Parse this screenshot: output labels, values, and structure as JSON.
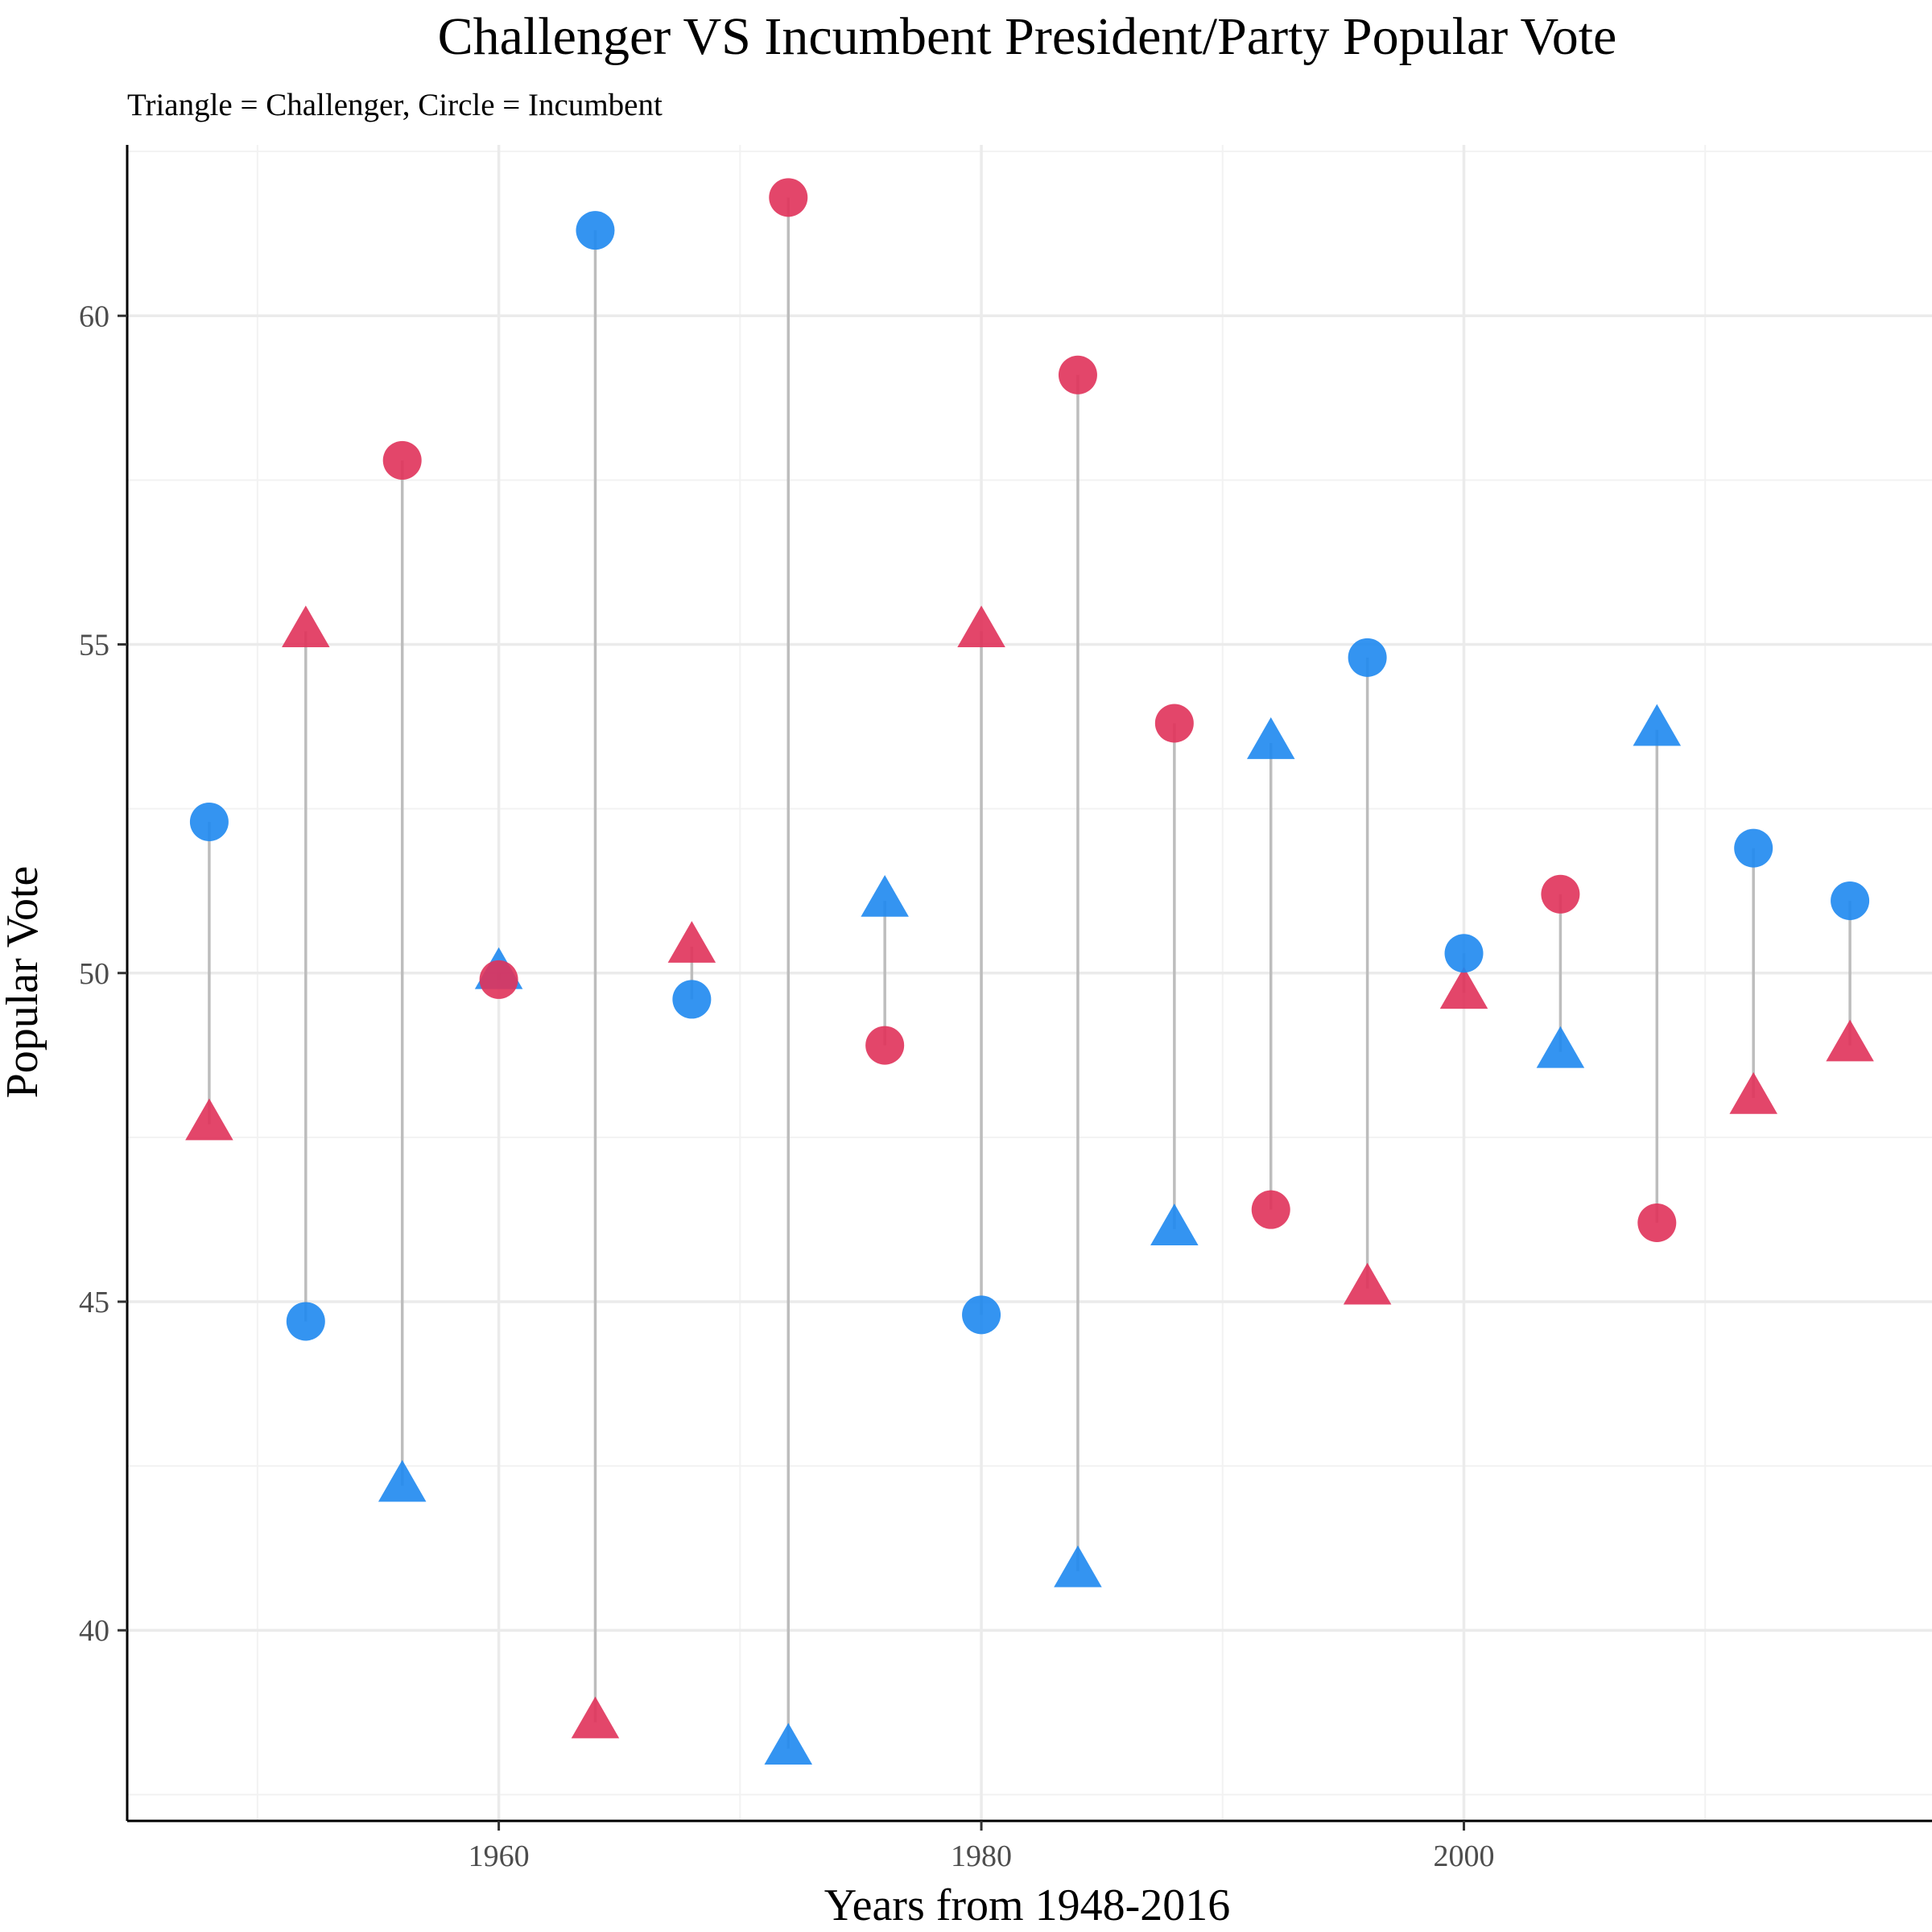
{
  "chart_data": {
    "type": "scatter",
    "title": "Challenger VS Incumbent President/Party Popular Vote",
    "subtitle": "Triangle = Challenger, Circle = Incumbent",
    "xlabel": "Years from 1948-2016",
    "ylabel": "Popular Vote",
    "xlim": [
      1944.6,
      2019.4
    ],
    "ylim": [
      37.1,
      62.6
    ],
    "x_ticks": [
      1960,
      1980,
      2000
    ],
    "y_ticks": [
      40,
      45,
      50,
      55,
      60
    ],
    "grid": true,
    "colors": {
      "blue": "#1E88F0",
      "red": "#E0325A",
      "segment": "#BDBDBD"
    },
    "points": [
      {
        "year": 1948,
        "incumbent": 52.3,
        "incumbent_color": "blue",
        "challenger": 47.7,
        "challenger_color": "red"
      },
      {
        "year": 1952,
        "incumbent": 44.7,
        "incumbent_color": "blue",
        "challenger": 55.2,
        "challenger_color": "red"
      },
      {
        "year": 1956,
        "incumbent": 57.8,
        "incumbent_color": "red",
        "challenger": 42.2,
        "challenger_color": "blue"
      },
      {
        "year": 1960,
        "incumbent": 49.9,
        "incumbent_color": "red",
        "challenger": 50.0,
        "challenger_color": "blue"
      },
      {
        "year": 1964,
        "incumbent": 61.3,
        "incumbent_color": "blue",
        "challenger": 38.6,
        "challenger_color": "red"
      },
      {
        "year": 1968,
        "incumbent": 49.6,
        "incumbent_color": "blue",
        "challenger": 50.4,
        "challenger_color": "red"
      },
      {
        "year": 1972,
        "incumbent": 61.8,
        "incumbent_color": "red",
        "challenger": 38.2,
        "challenger_color": "blue"
      },
      {
        "year": 1976,
        "incumbent": 48.9,
        "incumbent_color": "red",
        "challenger": 51.1,
        "challenger_color": "blue"
      },
      {
        "year": 1980,
        "incumbent": 44.8,
        "incumbent_color": "blue",
        "challenger": 55.2,
        "challenger_color": "red"
      },
      {
        "year": 1984,
        "incumbent": 59.1,
        "incumbent_color": "red",
        "challenger": 40.9,
        "challenger_color": "blue"
      },
      {
        "year": 1988,
        "incumbent": 53.8,
        "incumbent_color": "red",
        "challenger": 46.1,
        "challenger_color": "blue"
      },
      {
        "year": 1992,
        "incumbent": 46.4,
        "incumbent_color": "red",
        "challenger": 53.5,
        "challenger_color": "blue"
      },
      {
        "year": 1996,
        "incumbent": 54.8,
        "incumbent_color": "blue",
        "challenger": 45.2,
        "challenger_color": "red"
      },
      {
        "year": 2000,
        "incumbent": 50.3,
        "incumbent_color": "blue",
        "challenger": 49.7,
        "challenger_color": "red"
      },
      {
        "year": 2004,
        "incumbent": 51.2,
        "incumbent_color": "red",
        "challenger": 48.8,
        "challenger_color": "blue"
      },
      {
        "year": 2008,
        "incumbent": 46.2,
        "incumbent_color": "red",
        "challenger": 53.7,
        "challenger_color": "blue"
      },
      {
        "year": 2012,
        "incumbent": 51.9,
        "incumbent_color": "blue",
        "challenger": 48.1,
        "challenger_color": "red"
      },
      {
        "year": 2016,
        "incumbent": 51.1,
        "incumbent_color": "blue",
        "challenger": 48.9,
        "challenger_color": "red"
      }
    ]
  }
}
